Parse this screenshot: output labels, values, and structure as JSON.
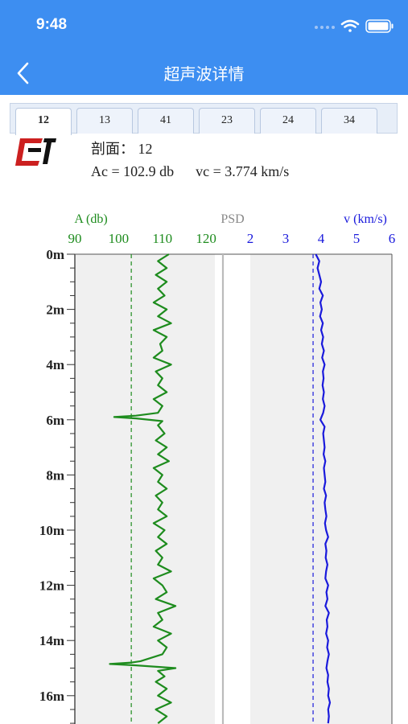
{
  "status": {
    "time": "9:48"
  },
  "header": {
    "title": "超声波详情"
  },
  "tabs": [
    {
      "label": "12",
      "active": true
    },
    {
      "label": "13",
      "active": false
    },
    {
      "label": "41",
      "active": false
    },
    {
      "label": "23",
      "active": false
    },
    {
      "label": "24",
      "active": false
    },
    {
      "label": "34",
      "active": false
    }
  ],
  "info": {
    "section_label": "剖面：",
    "section_value": "12",
    "ac_label": "Ac = 102.9 db",
    "vc_label": "vc = 3.774 km/s"
  },
  "colors": {
    "header_bg": "#3d8ef1",
    "amplitude": "#1e8c1e",
    "velocity": "#1a1adc",
    "psd": "#888888"
  },
  "chart_data": [
    {
      "type": "line",
      "panel": "amplitude",
      "xlabel": "A (db)",
      "xlim": [
        90,
        122
      ],
      "xticks": [
        "90",
        "100",
        "110",
        "120"
      ],
      "ylim": [
        0,
        17
      ],
      "yticks": [
        "0m",
        "2m",
        "4m",
        "6m",
        "8m",
        "10m",
        "12m",
        "14m",
        "16m"
      ],
      "reference_line": 102.9,
      "depth": [
        0,
        0.25,
        0.5,
        0.75,
        1,
        1.25,
        1.5,
        1.75,
        2,
        2.25,
        2.5,
        2.75,
        3,
        3.25,
        3.5,
        3.75,
        4,
        4.25,
        4.5,
        4.75,
        5,
        5.25,
        5.5,
        5.75,
        5.85,
        5.9,
        5.95,
        6.05,
        6.2,
        6.5,
        6.75,
        7,
        7.25,
        7.5,
        7.75,
        8,
        8.25,
        8.5,
        8.75,
        9,
        9.25,
        9.5,
        9.75,
        10,
        10.25,
        10.5,
        10.75,
        11,
        11.25,
        11.5,
        11.75,
        12,
        12.25,
        12.5,
        12.75,
        13,
        13.25,
        13.5,
        13.75,
        14,
        14.25,
        14.5,
        14.75,
        14.8,
        14.85,
        14.9,
        15.0,
        15.1,
        15.3,
        15.5,
        15.75,
        16,
        16.25,
        16.5,
        16.75,
        17
      ],
      "values": [
        111.5,
        109,
        111,
        108.5,
        111,
        109,
        110.5,
        108,
        111,
        109,
        112,
        108,
        111,
        109.5,
        110,
        108,
        112,
        108.5,
        110,
        109,
        111,
        108,
        110,
        109,
        104,
        99,
        104,
        110,
        109,
        110.5,
        108.5,
        111,
        109,
        111.5,
        108,
        110,
        109,
        111,
        108.5,
        110,
        109,
        111,
        108,
        110.5,
        109,
        111,
        108.5,
        110,
        109,
        112,
        108,
        110,
        111,
        108.5,
        113,
        109,
        110,
        108,
        112,
        109,
        111,
        110,
        105,
        103,
        98,
        104,
        113,
        109,
        110.5,
        108.5,
        111,
        109,
        112,
        108.5,
        111,
        109
      ]
    },
    {
      "type": "line",
      "panel": "psd",
      "xlabel": "PSD"
    },
    {
      "type": "line",
      "panel": "velocity",
      "xlabel": "v (km/s)",
      "xlim": [
        2,
        6
      ],
      "xticks": [
        "2",
        "3",
        "4",
        "5",
        "6"
      ],
      "ylim": [
        0,
        17
      ],
      "reference_line": 3.774,
      "depth": [
        0,
        0.25,
        0.5,
        0.75,
        1,
        1.25,
        1.5,
        1.75,
        2,
        2.25,
        2.5,
        2.75,
        3,
        3.25,
        3.5,
        3.75,
        4,
        4.25,
        4.5,
        4.75,
        5,
        5.25,
        5.5,
        5.75,
        6,
        6.25,
        6.5,
        6.75,
        7,
        7.25,
        7.5,
        7.75,
        8,
        8.25,
        8.5,
        8.75,
        9,
        9.25,
        9.5,
        9.75,
        10,
        10.25,
        10.5,
        10.75,
        11,
        11.25,
        11.5,
        11.75,
        12,
        12.25,
        12.5,
        12.75,
        13,
        13.25,
        13.5,
        13.75,
        14,
        14.25,
        14.5,
        14.75,
        15,
        15.25,
        15.5,
        15.75,
        16,
        16.25,
        16.5,
        16.75,
        17
      ],
      "values": [
        3.85,
        3.95,
        3.9,
        3.95,
        4.0,
        3.95,
        4.05,
        3.98,
        4.02,
        3.97,
        4.05,
        4.0,
        4.06,
        4.02,
        4.08,
        4.03,
        4.1,
        4.05,
        4.07,
        4.04,
        4.08,
        4.05,
        4.1,
        4.06,
        3.98,
        4.1,
        4.06,
        4.08,
        4.1,
        4.07,
        4.12,
        4.08,
        4.1,
        4.12,
        4.08,
        4.14,
        4.1,
        4.12,
        4.15,
        4.11,
        4.14,
        4.2,
        4.12,
        4.15,
        4.13,
        4.18,
        4.14,
        4.12,
        4.2,
        4.15,
        4.18,
        4.12,
        4.22,
        4.16,
        4.18,
        4.14,
        4.2,
        4.17,
        4.22,
        4.18,
        4.15,
        4.2,
        4.18,
        4.22,
        4.2,
        4.25,
        4.2,
        4.22,
        4.2
      ]
    }
  ]
}
